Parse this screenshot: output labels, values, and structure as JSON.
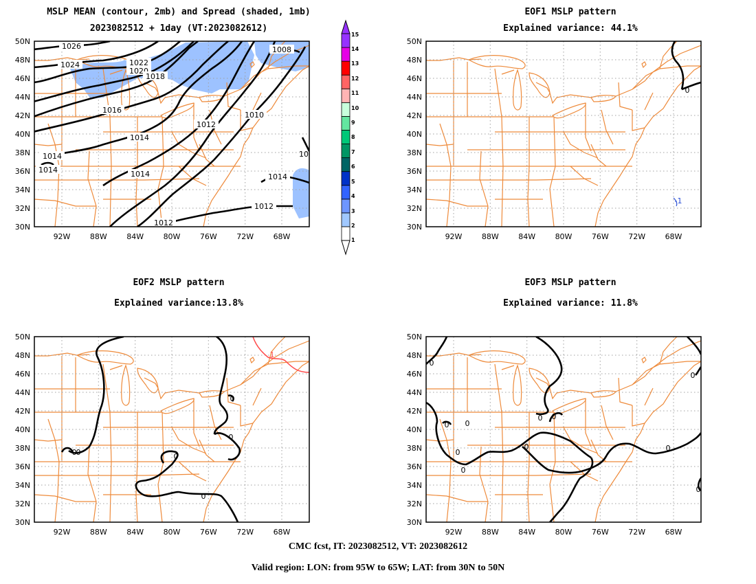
{
  "panels": {
    "main": {
      "title_line1": "MSLP MEAN (contour, 2mb) and Spread (shaded, 1mb)",
      "title_line2": "2023082512 + 1day (VT:2023082612)",
      "contour_labels": [
        "1026",
        "1024",
        "1022",
        "1020",
        "1018",
        "1016",
        "1014",
        "1014",
        "1014",
        "1014",
        "1012",
        "1012",
        "1012",
        "1010",
        "1008",
        "10"
      ]
    },
    "eof1": {
      "title_line1": "EOF1 MSLP pattern",
      "title_line2": "Explained variance: 44.1%",
      "contour_labels": [
        "0",
        "-1"
      ]
    },
    "eof2": {
      "title_line1": "EOF2 MSLP pattern",
      "title_line2": "Explained variance:13.8%",
      "contour_labels": [
        "0",
        "0",
        "0",
        "0",
        "0",
        "0",
        "1"
      ]
    },
    "eof3": {
      "title_line1": "EOF3 MSLP pattern",
      "title_line2": "Explained variance: 11.8%",
      "contour_labels": [
        "0",
        "0",
        "0",
        "0",
        "0",
        "0",
        "0",
        "0",
        "0",
        "0",
        "0"
      ]
    }
  },
  "lat_labels": [
    "50N",
    "48N",
    "46N",
    "44N",
    "42N",
    "40N",
    "38N",
    "36N",
    "34N",
    "32N",
    "30N"
  ],
  "lon_labels": [
    "92W",
    "88W",
    "84W",
    "80W",
    "76W",
    "72W",
    "68W"
  ],
  "colorbar": {
    "labels": [
      "1",
      "2",
      "3",
      "4",
      "5",
      "6",
      "7",
      "8",
      "9",
      "10",
      "11",
      "12",
      "13",
      "14",
      "15"
    ],
    "colors": [
      "#ffffff",
      "#a0c8ff",
      "#6e96ff",
      "#3264ff",
      "#0032c8",
      "#006464",
      "#009664",
      "#00c878",
      "#64e6a0",
      "#c8ffdc",
      "#ffb4b4",
      "#ff6464",
      "#ff0000",
      "#e600e6",
      "#9632ff"
    ]
  },
  "footer_line1": "CMC fcst, IT: 2023082512, VT: 2023082612",
  "footer_line2": "Valid region: LON: from 95W to 65W; LAT: from 30N to 50N",
  "styles": {
    "state_line_color": "#ee8a3a",
    "contour_color": "#000000",
    "spread_color": "#9dc2ff"
  }
}
